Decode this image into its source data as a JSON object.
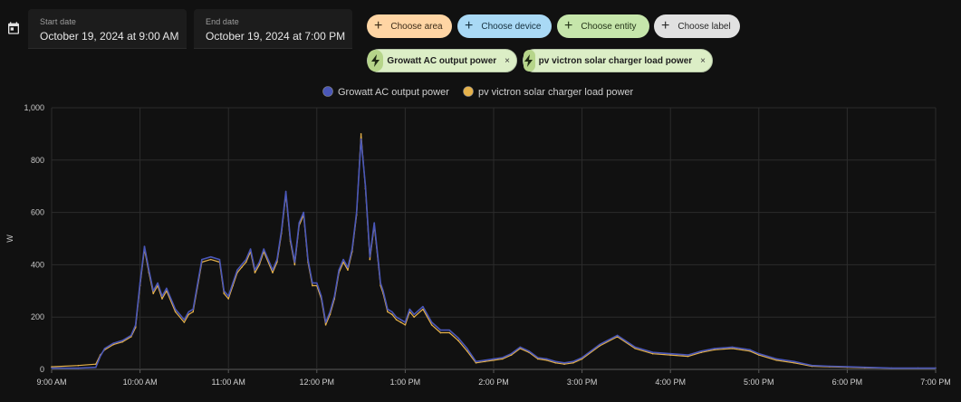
{
  "date_range": {
    "start_label": "Start date",
    "start_value": "October 19, 2024 at 9:00 AM",
    "end_label": "End date",
    "end_value": "October 19, 2024 at 7:00 PM"
  },
  "target_pickers": [
    {
      "label": "Choose area",
      "bg": "#ffd5a4"
    },
    {
      "label": "Choose device",
      "bg": "#a9d9f5"
    },
    {
      "label": "Choose entity",
      "bg": "#c6e6ab"
    },
    {
      "label": "Choose label",
      "bg": "#e1e1e1"
    }
  ],
  "selected_entities": [
    {
      "label": "Growatt AC output power",
      "remove": "×"
    },
    {
      "label": "pv victron solar charger load power",
      "remove": "×"
    }
  ],
  "colors": {
    "series1": "#4a57b8",
    "series2": "#e6b24b",
    "grid": "#2c2c2c"
  },
  "chart_data": {
    "type": "line",
    "ylabel": "W",
    "ylim": [
      0,
      1000
    ],
    "yticks": [
      "0",
      "200",
      "400",
      "600",
      "800",
      "1,000"
    ],
    "xlim": [
      "9:00 AM",
      "7:00 PM"
    ],
    "xticks": [
      "9:00 AM",
      "10:00 AM",
      "11:00 AM",
      "12:00 PM",
      "1:00 PM",
      "2:00 PM",
      "3:00 PM",
      "4:00 PM",
      "5:00 PM",
      "6:00 PM",
      "7:00 PM"
    ],
    "legend": "top-center",
    "series": [
      {
        "name": "Growatt AC output power",
        "x_hours": [
          9.0,
          9.3,
          9.5,
          9.55,
          9.6,
          9.7,
          9.8,
          9.9,
          9.95,
          10.0,
          10.05,
          10.1,
          10.15,
          10.2,
          10.25,
          10.3,
          10.4,
          10.5,
          10.55,
          10.6,
          10.7,
          10.8,
          10.9,
          10.95,
          11.0,
          11.05,
          11.1,
          11.15,
          11.2,
          11.25,
          11.3,
          11.35,
          11.4,
          11.5,
          11.55,
          11.6,
          11.65,
          11.7,
          11.75,
          11.8,
          11.85,
          11.9,
          11.95,
          12.0,
          12.05,
          12.1,
          12.15,
          12.2,
          12.25,
          12.3,
          12.35,
          12.4,
          12.45,
          12.5,
          12.55,
          12.6,
          12.65,
          12.7,
          12.72,
          12.75,
          12.8,
          12.85,
          12.9,
          12.95,
          13.0,
          13.05,
          13.1,
          13.2,
          13.3,
          13.4,
          13.5,
          13.6,
          13.7,
          13.8,
          13.9,
          14.0,
          14.1,
          14.2,
          14.3,
          14.4,
          14.5,
          14.6,
          14.7,
          14.8,
          14.9,
          15.0,
          15.2,
          15.4,
          15.6,
          15.8,
          16.0,
          16.2,
          16.35,
          16.5,
          16.7,
          16.9,
          17.0,
          17.2,
          17.4,
          17.6,
          17.8,
          18.0,
          18.2,
          18.5,
          18.8,
          19.0
        ],
        "values": [
          5,
          5,
          8,
          50,
          80,
          100,
          110,
          130,
          170,
          330,
          470,
          380,
          300,
          330,
          280,
          310,
          230,
          190,
          220,
          230,
          420,
          430,
          420,
          300,
          280,
          330,
          380,
          400,
          420,
          460,
          380,
          410,
          460,
          380,
          420,
          530,
          680,
          500,
          410,
          560,
          600,
          420,
          330,
          330,
          280,
          180,
          220,
          280,
          380,
          420,
          390,
          460,
          600,
          880,
          700,
          430,
          560,
          400,
          330,
          300,
          230,
          220,
          200,
          190,
          180,
          230,
          210,
          240,
          180,
          150,
          150,
          120,
          80,
          30,
          35,
          40,
          45,
          60,
          85,
          70,
          45,
          40,
          30,
          25,
          30,
          45,
          95,
          130,
          85,
          65,
          60,
          55,
          70,
          80,
          85,
          75,
          60,
          40,
          30,
          15,
          12,
          10,
          8,
          5,
          5,
          5
        ]
      },
      {
        "name": "pv victron solar charger load power",
        "x_hours": [
          9.0,
          9.3,
          9.5,
          9.55,
          9.6,
          9.7,
          9.8,
          9.9,
          9.95,
          10.0,
          10.05,
          10.1,
          10.15,
          10.2,
          10.25,
          10.3,
          10.4,
          10.5,
          10.55,
          10.6,
          10.7,
          10.8,
          10.9,
          10.95,
          11.0,
          11.05,
          11.1,
          11.15,
          11.2,
          11.25,
          11.3,
          11.35,
          11.4,
          11.5,
          11.55,
          11.6,
          11.65,
          11.7,
          11.75,
          11.8,
          11.85,
          11.9,
          11.95,
          12.0,
          12.05,
          12.1,
          12.15,
          12.2,
          12.25,
          12.3,
          12.35,
          12.4,
          12.45,
          12.5,
          12.55,
          12.6,
          12.65,
          12.7,
          12.72,
          12.75,
          12.8,
          12.85,
          12.9,
          12.95,
          13.0,
          13.05,
          13.1,
          13.2,
          13.3,
          13.4,
          13.5,
          13.6,
          13.7,
          13.8,
          13.9,
          14.0,
          14.1,
          14.2,
          14.3,
          14.4,
          14.5,
          14.6,
          14.7,
          14.8,
          14.9,
          15.0,
          15.2,
          15.4,
          15.6,
          15.8,
          16.0,
          16.2,
          16.35,
          16.5,
          16.7,
          16.9,
          17.0,
          17.2,
          17.4,
          17.6,
          17.8,
          18.0,
          18.2,
          18.5,
          18.8,
          19.0
        ],
        "values": [
          10,
          15,
          20,
          55,
          75,
          95,
          105,
          125,
          160,
          320,
          460,
          370,
          290,
          320,
          270,
          300,
          220,
          180,
          210,
          220,
          410,
          420,
          410,
          290,
          270,
          320,
          370,
          390,
          410,
          450,
          370,
          400,
          450,
          370,
          410,
          520,
          670,
          490,
          400,
          550,
          590,
          410,
          320,
          320,
          270,
          170,
          210,
          270,
          370,
          410,
          380,
          450,
          590,
          900,
          690,
          420,
          550,
          390,
          320,
          290,
          220,
          210,
          190,
          180,
          170,
          220,
          200,
          230,
          170,
          140,
          140,
          110,
          70,
          25,
          30,
          35,
          40,
          55,
          80,
          65,
          40,
          35,
          25,
          20,
          25,
          40,
          90,
          125,
          80,
          60,
          55,
          50,
          65,
          75,
          80,
          70,
          55,
          35,
          25,
          12,
          10,
          8,
          6,
          5,
          5,
          5
        ]
      }
    ]
  }
}
